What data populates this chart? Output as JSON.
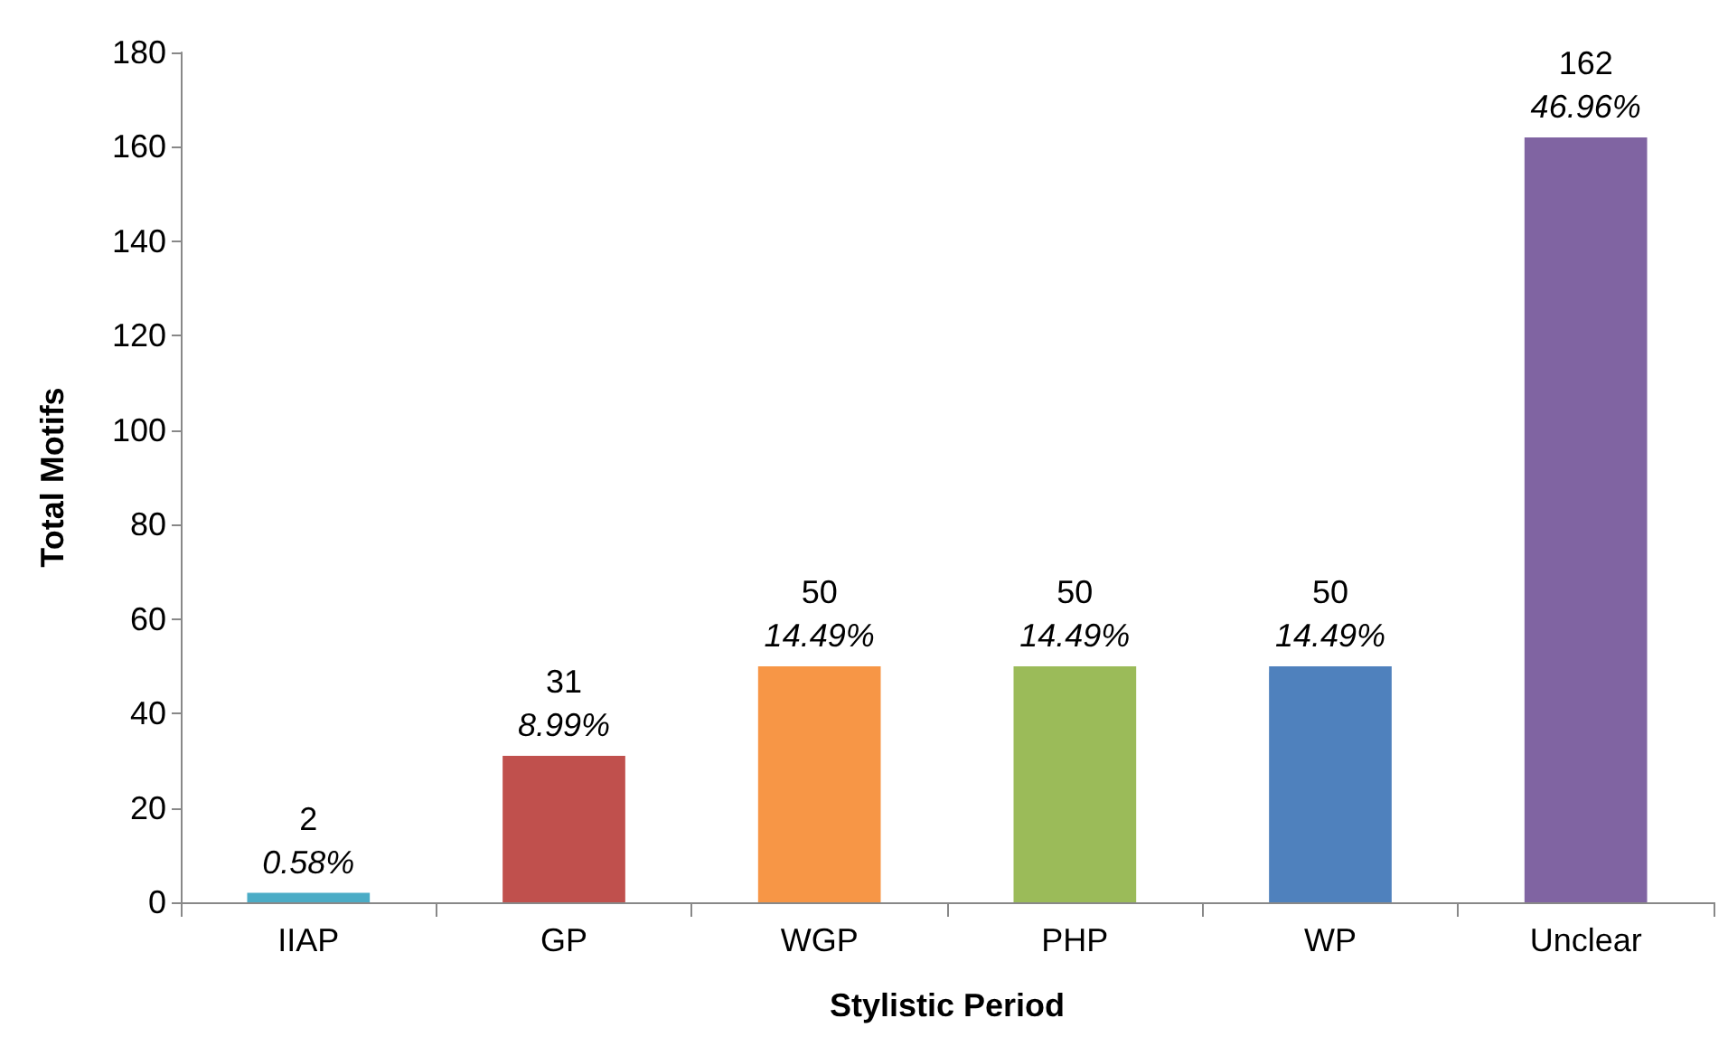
{
  "chart_data": {
    "type": "bar",
    "xlabel": "Stylistic Period",
    "ylabel": "Total Motifs",
    "categories": [
      "IIAP",
      "GP",
      "WGP",
      "PHP",
      "WP",
      "Unclear"
    ],
    "values": [
      2,
      31,
      50,
      50,
      50,
      162
    ],
    "colors": [
      "#4bacc6",
      "#c0504d",
      "#f79646",
      "#9bbb59",
      "#4f81bd",
      "#8064a2"
    ],
    "data_labels": true,
    "annotations": [
      {
        "text": "0.58%",
        "x": "IIAP",
        "y": 2
      },
      {
        "text": "8.99%",
        "x": "GP",
        "y": 31
      },
      {
        "text": "14.49%",
        "x": "WGP",
        "y": 50
      },
      {
        "text": "14.49%",
        "x": "PHP",
        "y": 50
      },
      {
        "text": "14.49%",
        "x": "WP",
        "y": 50
      },
      {
        "text": "46.96%",
        "x": "Unclear",
        "y": 162
      }
    ],
    "ylim": [
      0,
      180
    ],
    "yticks": [
      0,
      20,
      40,
      60,
      80,
      100,
      120,
      140,
      160,
      180
    ],
    "grid": false
  }
}
